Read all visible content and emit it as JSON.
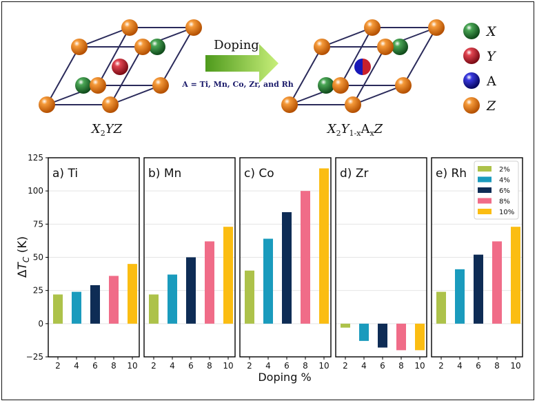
{
  "illustration": {
    "left_formula_parts": [
      "X",
      "2",
      "YZ"
    ],
    "right_formula_parts": [
      "X",
      "2",
      "Y",
      "1-x",
      "A",
      "x",
      "Z"
    ],
    "arrow_label": "Doping",
    "dopant_note": "A = Ti, Mn, Co, Zr, and Rh",
    "atom_legend": [
      {
        "label": "X",
        "color": "#2e8b3a",
        "italic": true
      },
      {
        "label": "Y",
        "color": "#c8202c",
        "italic": true
      },
      {
        "label": "A",
        "color": "#1a1ab8",
        "italic": false
      },
      {
        "label": "Z",
        "color": "#ee7a10",
        "italic": true
      }
    ]
  },
  "chart_data": {
    "type": "bar",
    "ylabel": "ΔT_C (K)",
    "xlabel": "Doping %",
    "ylim": [
      -25,
      125
    ],
    "yticks": [
      "−25",
      "0",
      "25",
      "50",
      "75",
      "100",
      "125"
    ],
    "ytick_values": [
      -25,
      0,
      25,
      50,
      75,
      100,
      125
    ],
    "categories": [
      "2",
      "4",
      "6",
      "8",
      "10"
    ],
    "series_colors": [
      "#adc24a",
      "#1a9bbd",
      "#0e2c55",
      "#f06c88",
      "#fbbd12"
    ],
    "legend": [
      "2%",
      "4%",
      "6%",
      "8%",
      "10%"
    ],
    "legend_position": "top-right of last panel",
    "grid": "horizontal",
    "panels": [
      {
        "title": "a) Ti",
        "values": [
          22,
          24,
          29,
          36,
          45
        ]
      },
      {
        "title": "b) Mn",
        "values": [
          22,
          37,
          50,
          62,
          73
        ]
      },
      {
        "title": "c) Co",
        "values": [
          40,
          64,
          84,
          100,
          117
        ]
      },
      {
        "title": "d) Zr",
        "values": [
          -3,
          -13,
          -18,
          -20,
          -20
        ]
      },
      {
        "title": "e) Rh",
        "values": [
          24,
          41,
          52,
          62,
          73
        ]
      }
    ]
  }
}
